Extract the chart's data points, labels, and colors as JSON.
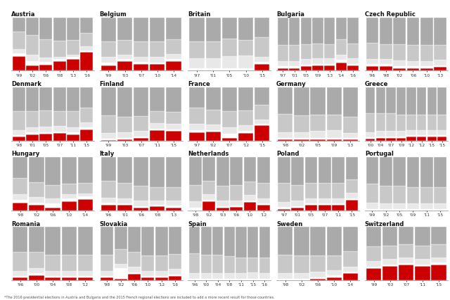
{
  "countries": [
    {
      "name": "Austria",
      "years": [
        "'99",
        "'02",
        "'06",
        "'08",
        "'13",
        "'16"
      ],
      "parties": [
        [
          27,
          10,
          11,
          18,
          21,
          35
        ],
        [
          5,
          8,
          5,
          3,
          4,
          3
        ],
        [
          8,
          12,
          8,
          5,
          5,
          8
        ],
        [
          33,
          36,
          35,
          30,
          27,
          25
        ],
        [
          27,
          34,
          41,
          44,
          43,
          29
        ]
      ],
      "colors": [
        "#cc0000",
        "#ffffff",
        "#e8e8e8",
        "#c8c8c8",
        "#aaaaaa"
      ]
    },
    {
      "name": "Belgium",
      "years": [
        "'99",
        "'03",
        "'07",
        "'10",
        "'14"
      ],
      "parties": [
        [
          10,
          18,
          12,
          12,
          18
        ],
        [
          5,
          3,
          4,
          3,
          3
        ],
        [
          10,
          8,
          10,
          10,
          10
        ],
        [
          30,
          28,
          28,
          30,
          28
        ],
        [
          45,
          43,
          46,
          45,
          41
        ]
      ],
      "colors": [
        "#cc0000",
        "#ffffff",
        "#e8e8e8",
        "#c8c8c8",
        "#aaaaaa"
      ]
    },
    {
      "name": "Britain",
      "years": [
        "'97",
        "'01",
        "'05",
        "'10",
        "'15"
      ],
      "parties": [
        [
          0,
          0,
          0,
          0,
          13
        ],
        [
          5,
          5,
          5,
          5,
          4
        ],
        [
          18,
          18,
          22,
          23,
          8
        ],
        [
          31,
          32,
          33,
          29,
          37
        ],
        [
          46,
          45,
          40,
          43,
          38
        ]
      ],
      "colors": [
        "#cc0000",
        "#ffffff",
        "#e8e8e8",
        "#c8c8c8",
        "#aaaaaa"
      ]
    },
    {
      "name": "Bulgaria",
      "years": [
        "'97",
        "'01",
        "'05",
        "'09",
        "'13",
        "'14",
        "'16"
      ],
      "parties": [
        [
          5,
          5,
          8,
          10,
          10,
          15,
          10
        ],
        [
          3,
          3,
          3,
          3,
          3,
          5,
          3
        ],
        [
          10,
          10,
          10,
          10,
          10,
          10,
          10
        ],
        [
          30,
          30,
          28,
          28,
          26,
          28,
          28
        ],
        [
          52,
          52,
          51,
          49,
          51,
          42,
          49
        ]
      ],
      "colors": [
        "#cc0000",
        "#ffffff",
        "#e8e8e8",
        "#c8c8c8",
        "#aaaaaa"
      ]
    },
    {
      "name": "Czech Republic",
      "years": [
        "'96",
        "'98",
        "'02",
        "'06",
        "'10",
        "'13"
      ],
      "parties": [
        [
          8,
          8,
          5,
          5,
          5,
          7
        ],
        [
          4,
          4,
          4,
          3,
          3,
          3
        ],
        [
          10,
          10,
          10,
          10,
          10,
          10
        ],
        [
          30,
          28,
          30,
          30,
          30,
          28
        ],
        [
          48,
          50,
          51,
          52,
          52,
          52
        ]
      ],
      "colors": [
        "#cc0000",
        "#ffffff",
        "#e8e8e8",
        "#c8c8c8",
        "#aaaaaa"
      ]
    },
    {
      "name": "Denmark",
      "years": [
        "'98",
        "'01",
        "'05",
        "'07",
        "'11",
        "'15"
      ],
      "parties": [
        [
          7,
          12,
          13,
          14,
          12,
          21
        ],
        [
          3,
          3,
          3,
          3,
          3,
          3
        ],
        [
          10,
          10,
          10,
          10,
          10,
          10
        ],
        [
          35,
          30,
          30,
          28,
          30,
          28
        ],
        [
          45,
          45,
          44,
          45,
          45,
          38
        ]
      ],
      "colors": [
        "#cc0000",
        "#ffffff",
        "#e8e8e8",
        "#c8c8c8",
        "#aaaaaa"
      ]
    },
    {
      "name": "Finland",
      "years": [
        "'99",
        "'03",
        "'07",
        "'11",
        "'15"
      ],
      "parties": [
        [
          1,
          2,
          5,
          19,
          18
        ],
        [
          3,
          3,
          3,
          3,
          3
        ],
        [
          10,
          10,
          10,
          10,
          10
        ],
        [
          33,
          30,
          28,
          23,
          23
        ],
        [
          53,
          55,
          54,
          45,
          46
        ]
      ],
      "colors": [
        "#cc0000",
        "#ffffff",
        "#e8e8e8",
        "#c8c8c8",
        "#aaaaaa"
      ]
    },
    {
      "name": "France",
      "years": [
        "'97",
        "'02",
        "'07",
        "'12",
        "'15"
      ],
      "parties": [
        [
          15,
          17,
          5,
          14,
          28
        ],
        [
          4,
          3,
          8,
          4,
          3
        ],
        [
          12,
          10,
          12,
          10,
          8
        ],
        [
          30,
          28,
          30,
          28,
          28
        ],
        [
          39,
          42,
          45,
          44,
          33
        ]
      ],
      "colors": [
        "#cc0000",
        "#ffffff",
        "#e8e8e8",
        "#c8c8c8",
        "#aaaaaa"
      ]
    },
    {
      "name": "Germany",
      "years": [
        "'98",
        "'02",
        "'05",
        "'09",
        "'13"
      ],
      "parties": [
        [
          2,
          2,
          2,
          2,
          2
        ],
        [
          3,
          3,
          3,
          3,
          3
        ],
        [
          10,
          10,
          13,
          15,
          9
        ],
        [
          35,
          32,
          30,
          28,
          30
        ],
        [
          50,
          53,
          52,
          52,
          56
        ]
      ],
      "colors": [
        "#cc0000",
        "#ffffff",
        "#e8e8e8",
        "#c8c8c8",
        "#aaaaaa"
      ]
    },
    {
      "name": "Greece",
      "years": [
        "'00",
        "'04",
        "'07",
        "'09",
        "'12",
        "'12",
        "'15",
        "'15"
      ],
      "parties": [
        [
          3,
          5,
          5,
          5,
          7,
          7,
          7,
          7
        ],
        [
          3,
          3,
          3,
          3,
          3,
          3,
          3,
          3
        ],
        [
          10,
          10,
          10,
          10,
          10,
          10,
          10,
          10
        ],
        [
          35,
          33,
          33,
          30,
          28,
          28,
          28,
          28
        ],
        [
          49,
          49,
          49,
          52,
          52,
          52,
          52,
          52
        ]
      ],
      "colors": [
        "#cc0000",
        "#ffffff",
        "#e8e8e8",
        "#c8c8c8",
        "#aaaaaa"
      ]
    },
    {
      "name": "Hungary",
      "years": [
        "'98",
        "'02",
        "'06",
        "'10",
        "'14"
      ],
      "parties": [
        [
          15,
          10,
          5,
          17,
          21
        ],
        [
          5,
          5,
          8,
          5,
          5
        ],
        [
          10,
          10,
          10,
          8,
          6
        ],
        [
          30,
          28,
          25,
          20,
          20
        ],
        [
          40,
          47,
          52,
          50,
          48
        ]
      ],
      "colors": [
        "#cc0000",
        "#ffffff",
        "#e8e8e8",
        "#c8c8c8",
        "#aaaaaa"
      ]
    },
    {
      "name": "Italy",
      "years": [
        "'96",
        "'01",
        "'06",
        "'08",
        "'13"
      ],
      "parties": [
        [
          10,
          10,
          5,
          8,
          5
        ],
        [
          4,
          3,
          3,
          3,
          4
        ],
        [
          10,
          10,
          10,
          8,
          10
        ],
        [
          32,
          28,
          28,
          25,
          25
        ],
        [
          44,
          49,
          54,
          56,
          56
        ]
      ],
      "colors": [
        "#cc0000",
        "#ffffff",
        "#e8e8e8",
        "#c8c8c8",
        "#aaaaaa"
      ]
    },
    {
      "name": "Netherlands",
      "years": [
        "'98",
        "'02",
        "'03",
        "'06",
        "'10",
        "'12"
      ],
      "parties": [
        [
          0,
          17,
          5,
          6,
          16,
          10
        ],
        [
          5,
          3,
          3,
          3,
          3,
          3
        ],
        [
          12,
          10,
          10,
          10,
          10,
          10
        ],
        [
          30,
          25,
          28,
          28,
          25,
          28
        ],
        [
          53,
          45,
          54,
          53,
          46,
          49
        ]
      ],
      "colors": [
        "#cc0000",
        "#ffffff",
        "#e8e8e8",
        "#c8c8c8",
        "#aaaaaa"
      ]
    },
    {
      "name": "Poland",
      "years": [
        "'97",
        "'01",
        "'05",
        "'07",
        "'11",
        "'15"
      ],
      "parties": [
        [
          3,
          5,
          10,
          10,
          10,
          20
        ],
        [
          3,
          3,
          3,
          3,
          3,
          3
        ],
        [
          10,
          10,
          10,
          10,
          10,
          10
        ],
        [
          35,
          30,
          28,
          28,
          28,
          25
        ],
        [
          49,
          52,
          49,
          49,
          49,
          42
        ]
      ],
      "colors": [
        "#cc0000",
        "#ffffff",
        "#e8e8e8",
        "#c8c8c8",
        "#aaaaaa"
      ]
    },
    {
      "name": "Portugal",
      "years": [
        "'99",
        "'02",
        "'05",
        "'09",
        "'11",
        "'15"
      ],
      "parties": [
        [
          0,
          0,
          0,
          0,
          0,
          0
        ],
        [
          3,
          3,
          3,
          3,
          3,
          3
        ],
        [
          12,
          10,
          10,
          10,
          10,
          10
        ],
        [
          35,
          33,
          33,
          30,
          30,
          30
        ],
        [
          50,
          54,
          54,
          57,
          57,
          57
        ]
      ],
      "colors": [
        "#cc0000",
        "#ffffff",
        "#e8e8e8",
        "#c8c8c8",
        "#aaaaaa"
      ]
    },
    {
      "name": "Romania",
      "years": [
        "'96",
        "'00",
        "'04",
        "'08",
        "'12"
      ],
      "parties": [
        [
          5,
          10,
          5,
          5,
          5
        ],
        [
          3,
          3,
          3,
          3,
          3
        ],
        [
          10,
          10,
          10,
          10,
          10
        ],
        [
          35,
          30,
          30,
          30,
          30
        ],
        [
          47,
          47,
          52,
          52,
          52
        ]
      ],
      "colors": [
        "#cc0000",
        "#ffffff",
        "#e8e8e8",
        "#c8c8c8",
        "#aaaaaa"
      ]
    },
    {
      "name": "Slovakia",
      "years": [
        "'98",
        "'02",
        "'06",
        "'10",
        "'12",
        "'16"
      ],
      "parties": [
        [
          5,
          3,
          12,
          5,
          5,
          8
        ],
        [
          3,
          20,
          3,
          3,
          3,
          3
        ],
        [
          10,
          8,
          10,
          10,
          10,
          10
        ],
        [
          30,
          28,
          28,
          28,
          28,
          28
        ],
        [
          52,
          41,
          47,
          54,
          54,
          51
        ]
      ],
      "colors": [
        "#cc0000",
        "#ffffff",
        "#e8e8e8",
        "#c8c8c8",
        "#aaaaaa"
      ]
    },
    {
      "name": "Spain",
      "years": [
        "'96",
        "'00",
        "'04",
        "'08",
        "'11",
        "'15",
        "'16"
      ],
      "parties": [
        [
          0,
          0,
          0,
          0,
          0,
          0,
          0
        ],
        [
          3,
          3,
          3,
          3,
          3,
          3,
          3
        ],
        [
          10,
          10,
          10,
          10,
          10,
          12,
          10
        ],
        [
          38,
          35,
          35,
          32,
          30,
          28,
          30
        ],
        [
          49,
          52,
          52,
          55,
          57,
          57,
          57
        ]
      ],
      "colors": [
        "#cc0000",
        "#ffffff",
        "#e8e8e8",
        "#c8c8c8",
        "#aaaaaa"
      ]
    },
    {
      "name": "Sweden",
      "years": [
        "'98",
        "'02",
        "'06",
        "'10",
        "'14"
      ],
      "parties": [
        [
          0,
          0,
          3,
          6,
          13
        ],
        [
          3,
          3,
          3,
          3,
          3
        ],
        [
          10,
          10,
          10,
          10,
          10
        ],
        [
          35,
          33,
          30,
          28,
          28
        ],
        [
          52,
          54,
          54,
          53,
          46
        ]
      ],
      "colors": [
        "#cc0000",
        "#ffffff",
        "#e8e8e8",
        "#c8c8c8",
        "#aaaaaa"
      ]
    },
    {
      "name": "Switzerland",
      "years": [
        "'99",
        "'03",
        "'07",
        "'11",
        "'15"
      ],
      "parties": [
        [
          23,
          27,
          29,
          27,
          30
        ],
        [
          3,
          3,
          3,
          3,
          3
        ],
        [
          10,
          10,
          10,
          10,
          10
        ],
        [
          28,
          25,
          25,
          25,
          25
        ],
        [
          36,
          35,
          33,
          35,
          32
        ]
      ],
      "colors": [
        "#cc0000",
        "#ffffff",
        "#e8e8e8",
        "#c8c8c8",
        "#aaaaaa"
      ]
    }
  ],
  "footnote": "*The 2016 presidential elections in Austria and Bulgaria and the 2015 French regional elections are included to add a more recent result for those countries."
}
